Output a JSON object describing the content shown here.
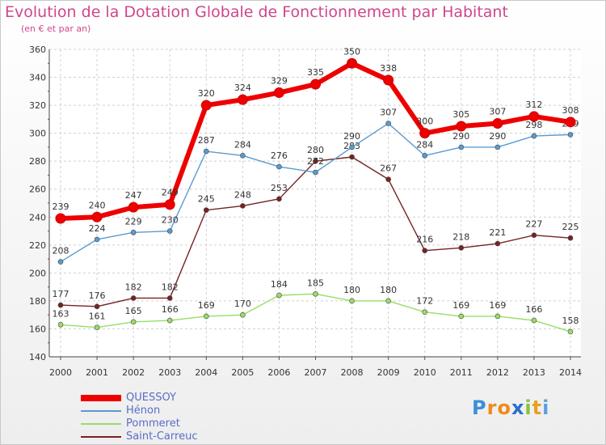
{
  "chart_data": {
    "type": "line",
    "title": "Evolution de la Dotation Globale de Fonctionnement par Habitant",
    "subtitle": "(en € et par an)",
    "x": [
      "2000",
      "2001",
      "2002",
      "2003",
      "2004",
      "2005",
      "2006",
      "2007",
      "2008",
      "2009",
      "2010",
      "2011",
      "2012",
      "2013",
      "2014"
    ],
    "ylim": [
      140,
      360
    ],
    "yticks": [
      140,
      160,
      180,
      200,
      220,
      240,
      260,
      280,
      300,
      320,
      340,
      360
    ],
    "grid": "horizontal and vertical dashed",
    "legend_position": "bottom-left",
    "series": [
      {
        "name": "QUESSOY",
        "color": "#ee0000",
        "values": [
          239,
          240,
          247,
          249,
          320,
          324,
          329,
          335,
          350,
          338,
          300,
          305,
          307,
          312,
          308
        ]
      },
      {
        "name": "Hénon",
        "color": "#5a9bd0",
        "values": [
          208,
          224,
          229,
          230,
          287,
          284,
          276,
          272,
          290,
          307,
          284,
          290,
          290,
          298,
          299
        ]
      },
      {
        "name": "Pommeret",
        "color": "#99dd66",
        "values": [
          163,
          161,
          165,
          166,
          169,
          170,
          184,
          185,
          180,
          180,
          172,
          169,
          169,
          166,
          158
        ]
      },
      {
        "name": "Saint-Carreuc",
        "color": "#772222",
        "values": [
          177,
          176,
          182,
          182,
          245,
          248,
          253,
          280,
          283,
          267,
          216,
          218,
          221,
          227,
          225
        ]
      }
    ]
  },
  "logo": {
    "letters": [
      "P",
      "r",
      "o",
      "x",
      "i",
      "t",
      "i"
    ],
    "colors": [
      "#3a8fd8",
      "#f08a1c",
      "#f08a1c",
      "#2a6fc8",
      "#88c33a",
      "#e8a020",
      "#5aa0e0"
    ]
  }
}
